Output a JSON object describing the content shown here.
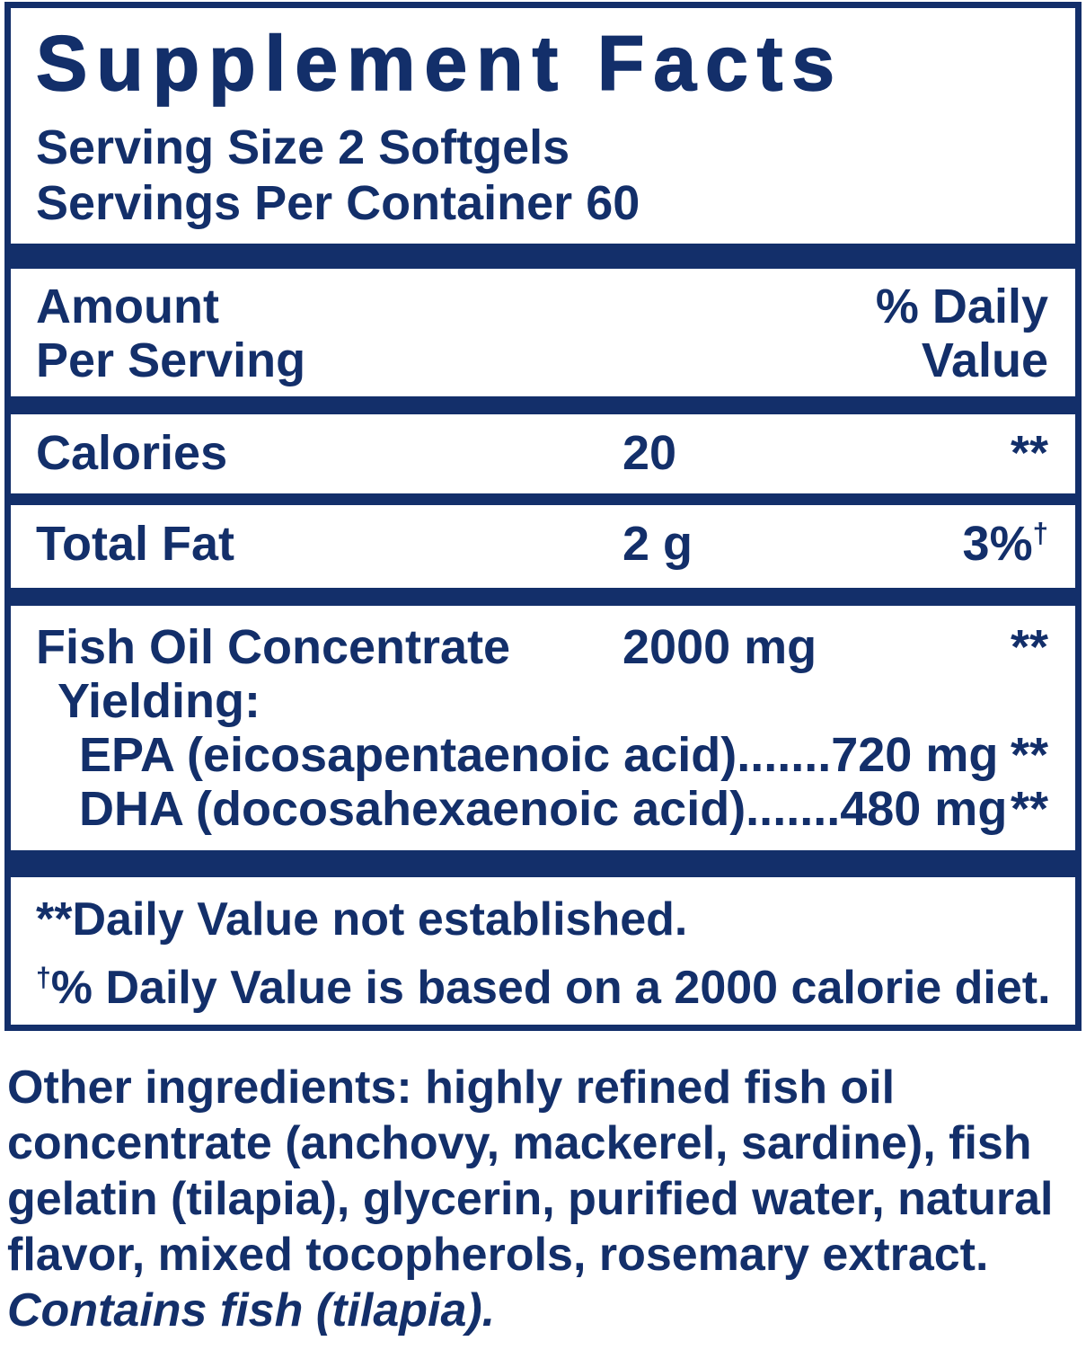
{
  "colors": {
    "navy": "#132f6a",
    "background": "#ffffff"
  },
  "panel": {
    "title": "Supplement Facts",
    "serving_size": "Serving Size 2 Softgels",
    "servings_per_container": "Servings Per Container 60",
    "header": {
      "amount_line1": "Amount",
      "amount_line2": "Per Serving",
      "dv_line1": "% Daily",
      "dv_line2": "Value"
    },
    "rows": [
      {
        "name": "Calories",
        "amount": "20",
        "dv": "**"
      },
      {
        "name": "Total Fat",
        "amount": "2 g",
        "dv": "3%",
        "dv_sup": "†"
      }
    ],
    "fish_oil": {
      "name": "Fish Oil Concentrate",
      "amount": "2000 mg",
      "dv": "**",
      "yielding_label": "Yielding:",
      "sub_rows": [
        {
          "text": "EPA (eicosapentaenoic acid).......720 mg",
          "dv": "**"
        },
        {
          "text": "DHA (docosahexaenoic acid).......480 mg",
          "dv": "**"
        }
      ]
    },
    "footnotes": [
      {
        "prefix": "**",
        "text": "Daily Value not established."
      },
      {
        "prefix": "†",
        "text": "% Daily Value is based on a 2000 calorie diet."
      }
    ]
  },
  "other_ingredients": {
    "lines": [
      "Other ingredients: highly refined fish oil",
      "concentrate (anchovy, mackerel, sardine), fish",
      "gelatin (tilapia), glycerin, purified water, natural",
      "flavor, mixed tocopherols, rosemary extract."
    ],
    "contains": "Contains fish (tilapia)."
  }
}
